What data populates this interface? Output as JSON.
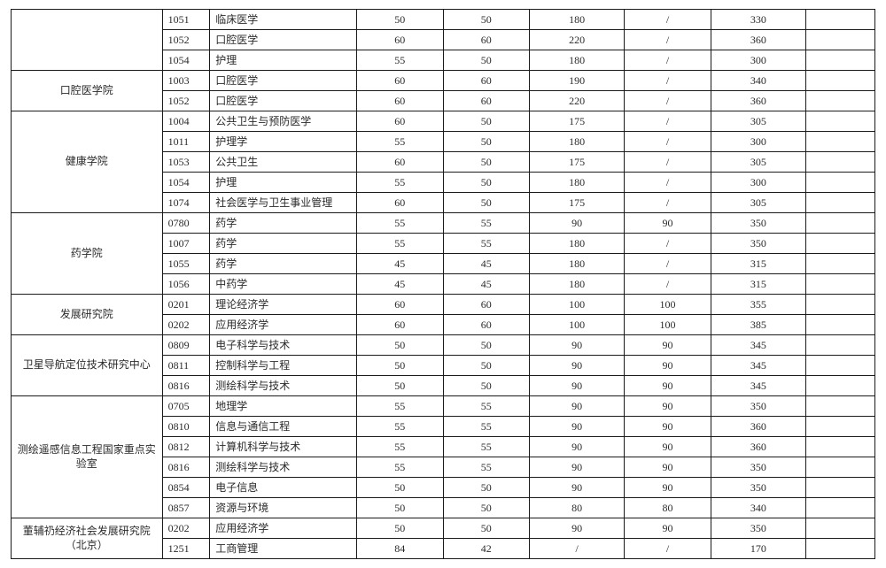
{
  "type": "table",
  "columns": [
    "department",
    "code",
    "major",
    "score1",
    "score2",
    "score3",
    "score4",
    "score5",
    "blank"
  ],
  "border_color": "#1a1a1a",
  "text_color": "#2a2a2a",
  "background_color": "#ffffff",
  "font_family": "SimSun",
  "font_size_pt": 9,
  "col_widths_pct": [
    17.5,
    5.5,
    17,
    10,
    10,
    11,
    10,
    11,
    8
  ],
  "groups": [
    {
      "department": "",
      "rows": [
        {
          "code": "1051",
          "major": "临床医学",
          "v": [
            "50",
            "50",
            "180",
            "/",
            "330",
            ""
          ]
        },
        {
          "code": "1052",
          "major": "口腔医学",
          "v": [
            "60",
            "60",
            "220",
            "/",
            "360",
            ""
          ]
        },
        {
          "code": "1054",
          "major": "护理",
          "v": [
            "55",
            "50",
            "180",
            "/",
            "300",
            ""
          ]
        }
      ]
    },
    {
      "department": "口腔医学院",
      "rows": [
        {
          "code": "1003",
          "major": "口腔医学",
          "v": [
            "60",
            "60",
            "190",
            "/",
            "340",
            ""
          ]
        },
        {
          "code": "1052",
          "major": "口腔医学",
          "v": [
            "60",
            "60",
            "220",
            "/",
            "360",
            ""
          ]
        }
      ]
    },
    {
      "department": "健康学院",
      "rows": [
        {
          "code": "1004",
          "major": "公共卫生与预防医学",
          "v": [
            "60",
            "50",
            "175",
            "/",
            "305",
            ""
          ]
        },
        {
          "code": "1011",
          "major": "护理学",
          "v": [
            "55",
            "50",
            "180",
            "/",
            "300",
            ""
          ]
        },
        {
          "code": "1053",
          "major": "公共卫生",
          "v": [
            "60",
            "50",
            "175",
            "/",
            "305",
            ""
          ]
        },
        {
          "code": "1054",
          "major": "护理",
          "v": [
            "55",
            "50",
            "180",
            "/",
            "300",
            ""
          ]
        },
        {
          "code": "1074",
          "major": "社会医学与卫生事业管理",
          "v": [
            "60",
            "50",
            "175",
            "/",
            "305",
            ""
          ]
        }
      ]
    },
    {
      "department": "药学院",
      "rows": [
        {
          "code": "0780",
          "major": "药学",
          "v": [
            "55",
            "55",
            "90",
            "90",
            "350",
            ""
          ]
        },
        {
          "code": "1007",
          "major": "药学",
          "v": [
            "55",
            "55",
            "180",
            "/",
            "350",
            ""
          ]
        },
        {
          "code": "1055",
          "major": "药学",
          "v": [
            "45",
            "45",
            "180",
            "/",
            "315",
            ""
          ]
        },
        {
          "code": "1056",
          "major": "中药学",
          "v": [
            "45",
            "45",
            "180",
            "/",
            "315",
            ""
          ]
        }
      ]
    },
    {
      "department": "发展研究院",
      "rows": [
        {
          "code": "0201",
          "major": "理论经济学",
          "v": [
            "60",
            "60",
            "100",
            "100",
            "355",
            ""
          ]
        },
        {
          "code": "0202",
          "major": "应用经济学",
          "v": [
            "60",
            "60",
            "100",
            "100",
            "385",
            ""
          ]
        }
      ]
    },
    {
      "department": "卫星导航定位技术研究中心",
      "rows": [
        {
          "code": "0809",
          "major": "电子科学与技术",
          "v": [
            "50",
            "50",
            "90",
            "90",
            "345",
            ""
          ]
        },
        {
          "code": "0811",
          "major": "控制科学与工程",
          "v": [
            "50",
            "50",
            "90",
            "90",
            "345",
            ""
          ]
        },
        {
          "code": "0816",
          "major": "测绘科学与技术",
          "v": [
            "50",
            "50",
            "90",
            "90",
            "345",
            ""
          ]
        }
      ]
    },
    {
      "department": "测绘遥感信息工程国家重点实验室",
      "rows": [
        {
          "code": "0705",
          "major": "地理学",
          "v": [
            "55",
            "55",
            "90",
            "90",
            "350",
            ""
          ]
        },
        {
          "code": "0810",
          "major": "信息与通信工程",
          "v": [
            "55",
            "55",
            "90",
            "90",
            "360",
            ""
          ]
        },
        {
          "code": "0812",
          "major": "计算机科学与技术",
          "v": [
            "55",
            "55",
            "90",
            "90",
            "360",
            ""
          ]
        },
        {
          "code": "0816",
          "major": "测绘科学与技术",
          "v": [
            "55",
            "55",
            "90",
            "90",
            "350",
            ""
          ]
        },
        {
          "code": "0854",
          "major": "电子信息",
          "v": [
            "50",
            "50",
            "90",
            "90",
            "350",
            ""
          ]
        },
        {
          "code": "0857",
          "major": "资源与环境",
          "v": [
            "50",
            "50",
            "80",
            "80",
            "340",
            ""
          ]
        }
      ]
    },
    {
      "department": "董辅礽经济社会发展研究院（北京）",
      "rows": [
        {
          "code": "0202",
          "major": "应用经济学",
          "v": [
            "50",
            "50",
            "90",
            "90",
            "350",
            ""
          ]
        },
        {
          "code": "1251",
          "major": "工商管理",
          "v": [
            "84",
            "42",
            "/",
            "/",
            "170",
            ""
          ]
        }
      ]
    }
  ]
}
